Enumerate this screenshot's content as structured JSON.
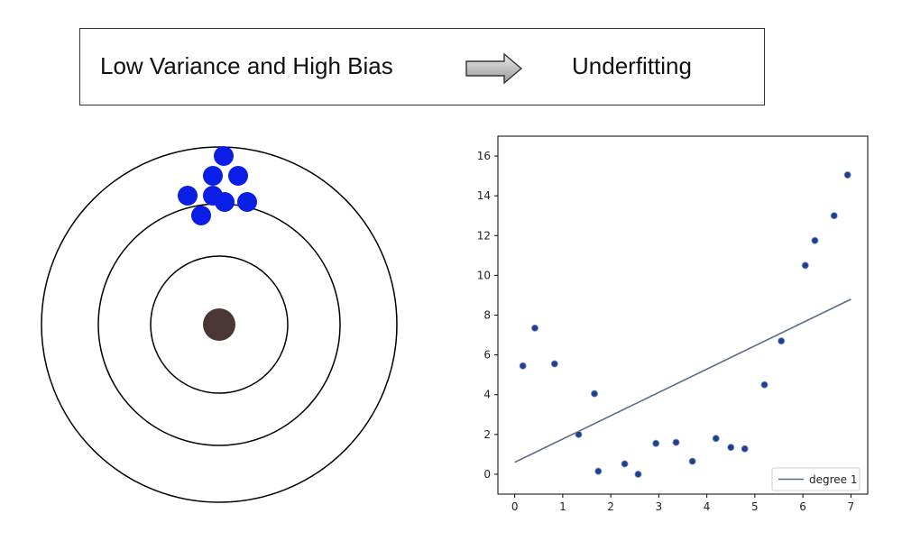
{
  "header": {
    "left_text": "Low Variance and High Bias",
    "right_text": "Underfitting",
    "arrow_icon": "right-arrow-icon"
  },
  "target": {
    "ring_stroke": "#000000",
    "bullseye_color": "#4a3735",
    "dot_color": "#0a1ee8"
  },
  "chart_data": {
    "type": "scatter",
    "title": "",
    "xlabel": "",
    "ylabel": "",
    "xlim": [
      -0.35,
      7.35
    ],
    "ylim": [
      -1.0,
      17.0
    ],
    "xticks": [
      0,
      1,
      2,
      3,
      4,
      5,
      6,
      7
    ],
    "yticks": [
      0,
      2,
      4,
      6,
      8,
      10,
      12,
      14,
      16
    ],
    "points": [
      {
        "x": 0.17,
        "y": 5.45
      },
      {
        "x": 0.42,
        "y": 7.35
      },
      {
        "x": 0.83,
        "y": 5.55
      },
      {
        "x": 1.33,
        "y": 2.0
      },
      {
        "x": 1.66,
        "y": 4.05
      },
      {
        "x": 1.74,
        "y": 0.15
      },
      {
        "x": 2.29,
        "y": 0.52
      },
      {
        "x": 2.57,
        "y": 0.0
      },
      {
        "x": 2.94,
        "y": 1.55
      },
      {
        "x": 3.36,
        "y": 1.6
      },
      {
        "x": 3.7,
        "y": 0.65
      },
      {
        "x": 4.19,
        "y": 1.8
      },
      {
        "x": 4.5,
        "y": 1.35
      },
      {
        "x": 4.79,
        "y": 1.28
      },
      {
        "x": 5.2,
        "y": 4.5
      },
      {
        "x": 5.55,
        "y": 6.7
      },
      {
        "x": 6.05,
        "y": 10.5
      },
      {
        "x": 6.25,
        "y": 11.75
      },
      {
        "x": 6.65,
        "y": 13.0
      },
      {
        "x": 6.93,
        "y": 15.05
      }
    ],
    "fit_line": {
      "name": "degree 1",
      "x": [
        0.0,
        7.0
      ],
      "y": [
        0.6,
        8.8
      ]
    },
    "legend": {
      "position": "bottom-right",
      "label": "degree 1"
    },
    "point_color": "#1f3f8f",
    "line_color": "#5a6b88",
    "grid": false
  }
}
